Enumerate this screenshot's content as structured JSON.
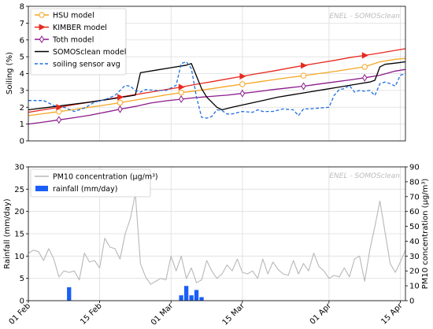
{
  "colors": {
    "hsu": "#f5a623",
    "kimber": "#e8281f",
    "toth": "#8b1a8b",
    "somosclean": "#000000",
    "sensor": "#1f6fe0",
    "pm10": "#b8b8b8",
    "rainfall": "#1a5ff5"
  },
  "chart_data": [
    {
      "type": "line",
      "watermark": "ENEL - SOMOSclean",
      "ylabel": "Soiling (%)",
      "ylim": [
        0,
        8
      ],
      "yticks": [
        "0",
        "1",
        "2",
        "3",
        "4",
        "5",
        "6",
        "7",
        "8"
      ],
      "xlim_days": [
        0,
        74
      ],
      "grid": true,
      "legend_position": "top-left",
      "series": [
        {
          "key": "hsu",
          "name": "HSU model",
          "marker": "circle",
          "x": [
            0,
            3,
            6,
            9,
            12,
            15,
            18,
            21,
            24,
            27,
            30,
            33,
            36,
            39,
            42,
            45,
            48,
            51,
            54,
            57,
            60,
            63,
            66,
            69,
            72,
            74
          ],
          "y": [
            1.5,
            1.62,
            1.74,
            1.87,
            2.0,
            2.13,
            2.27,
            2.43,
            2.58,
            2.73,
            2.87,
            2.98,
            3.1,
            3.24,
            3.37,
            3.5,
            3.63,
            3.76,
            3.88,
            4.0,
            4.12,
            4.26,
            4.4,
            4.7,
            4.85,
            4.9
          ]
        },
        {
          "key": "kimber",
          "name": "KIMBER model",
          "marker": "triangle-right",
          "x": [
            0,
            3,
            6,
            9,
            12,
            15,
            18,
            21,
            24,
            27,
            30,
            33,
            36,
            39,
            42,
            45,
            48,
            51,
            54,
            57,
            60,
            63,
            66,
            69,
            72,
            74
          ],
          "y": [
            1.7,
            1.85,
            2.0,
            2.15,
            2.3,
            2.45,
            2.6,
            2.75,
            2.9,
            3.05,
            3.2,
            3.37,
            3.52,
            3.68,
            3.84,
            4.0,
            4.15,
            4.32,
            4.48,
            4.63,
            4.78,
            4.95,
            5.08,
            5.22,
            5.38,
            5.48
          ]
        },
        {
          "key": "toth",
          "name": "Toth model",
          "marker": "diamond",
          "x": [
            0,
            3,
            6,
            9,
            12,
            15,
            18,
            21,
            24,
            27,
            30,
            33,
            36,
            39,
            42,
            45,
            48,
            51,
            54,
            57,
            60,
            63,
            66,
            69,
            72,
            74
          ],
          "y": [
            1.0,
            1.12,
            1.25,
            1.38,
            1.52,
            1.7,
            1.88,
            2.05,
            2.25,
            2.38,
            2.48,
            2.58,
            2.65,
            2.72,
            2.82,
            2.93,
            3.05,
            3.15,
            3.25,
            3.38,
            3.5,
            3.62,
            3.75,
            3.9,
            4.15,
            4.25
          ]
        },
        {
          "key": "somosclean",
          "name": "SOMOSclean model",
          "marker": "none",
          "x": [
            0,
            4,
            8,
            12,
            16,
            21,
            22,
            25,
            28,
            31,
            32,
            34,
            35,
            37,
            38,
            40,
            43,
            46,
            49,
            52,
            55,
            58,
            61,
            64,
            67,
            68,
            69,
            70,
            72,
            74
          ],
          "y": [
            1.85,
            2.0,
            2.15,
            2.3,
            2.48,
            2.72,
            4.05,
            4.2,
            4.35,
            4.5,
            4.6,
            3.1,
            2.6,
            2.0,
            1.85,
            2.0,
            2.2,
            2.4,
            2.6,
            2.75,
            2.9,
            3.05,
            3.2,
            3.35,
            3.5,
            3.6,
            4.4,
            4.55,
            4.62,
            4.7
          ]
        },
        {
          "key": "sensor",
          "name": "soiling sensor avg",
          "marker": "none",
          "dashed": true,
          "x": [
            0,
            3,
            5,
            7,
            9,
            11,
            13,
            15,
            17,
            19,
            20,
            21,
            22,
            23,
            25,
            27,
            29,
            30,
            31,
            32,
            33,
            34,
            35,
            36,
            37,
            38,
            39,
            40,
            42,
            44,
            45,
            46,
            48,
            50,
            52,
            53,
            54,
            55,
            57,
            59,
            60,
            61,
            62,
            63,
            64,
            65,
            66,
            67,
            68,
            69,
            70,
            71,
            72,
            73,
            74
          ],
          "y": [
            2.4,
            2.4,
            2.1,
            2.0,
            1.75,
            1.95,
            2.3,
            2.45,
            2.7,
            3.3,
            3.25,
            3.0,
            2.9,
            3.05,
            3.0,
            3.0,
            3.3,
            4.6,
            4.7,
            4.3,
            2.6,
            1.4,
            1.35,
            1.45,
            1.85,
            1.8,
            1.6,
            1.6,
            1.75,
            1.7,
            1.85,
            1.75,
            1.75,
            1.9,
            1.85,
            1.5,
            1.9,
            1.9,
            1.95,
            2.0,
            2.7,
            3.05,
            3.1,
            3.3,
            2.9,
            3.0,
            2.95,
            3.0,
            2.7,
            3.4,
            3.5,
            3.4,
            3.25,
            3.9,
            4.0
          ]
        }
      ]
    },
    {
      "type": "line+bar",
      "watermark": "ENEL - SOMOSclean",
      "ylabel": "Rainfall (mm/day)",
      "ylabel_right": "PM10 concentration (μg/m³)",
      "ylim": [
        0,
        30
      ],
      "ylim_right": [
        0,
        90
      ],
      "yticks": [
        "0",
        "5",
        "10",
        "15",
        "20",
        "25",
        "30"
      ],
      "yticks_right": [
        "0",
        "10",
        "20",
        "30",
        "40",
        "50",
        "60",
        "70",
        "80",
        "90"
      ],
      "x_tick_labels": [
        "01 Feb",
        "15 Feb",
        "01 Mar",
        "15 Mar",
        "01 Apr",
        "15 Apr"
      ],
      "x_tick_days": [
        0,
        14,
        28,
        42,
        59,
        73
      ],
      "grid": true,
      "legend_position": "top-left",
      "legend": [
        "PM10 concentration (μg/m³)",
        "rainfall (mm/day)"
      ],
      "pm10": {
        "name": "PM10 concentration (μg/m³)",
        "x": [
          0,
          1,
          2,
          3,
          4,
          5,
          6,
          7,
          8,
          9,
          10,
          11,
          12,
          13,
          14,
          15,
          16,
          17,
          18,
          19,
          20,
          21,
          22,
          23,
          24,
          25,
          26,
          27,
          28,
          29,
          30,
          31,
          32,
          33,
          34,
          35,
          36,
          37,
          38,
          39,
          40,
          41,
          42,
          43,
          44,
          45,
          46,
          47,
          48,
          49,
          50,
          51,
          52,
          53,
          54,
          55,
          56,
          57,
          58,
          59,
          60,
          61,
          62,
          63,
          64,
          65,
          66,
          67,
          68,
          69,
          70,
          71,
          72,
          73,
          74
        ],
        "y": [
          32,
          34,
          33,
          27,
          35,
          28,
          16,
          20,
          19,
          20,
          14,
          32,
          26,
          27,
          22,
          42,
          36,
          35,
          28,
          45,
          55,
          72,
          25,
          16,
          11,
          13,
          15,
          14,
          30,
          20,
          30,
          15,
          22,
          12,
          14,
          27,
          20,
          15,
          18,
          24,
          20,
          28,
          19,
          18,
          20,
          15,
          28,
          18,
          26,
          21,
          18,
          17,
          27,
          18,
          25,
          20,
          32,
          23,
          20,
          15,
          17,
          16,
          22,
          16,
          28,
          30,
          13,
          34,
          50,
          67,
          46,
          25,
          19,
          26,
          34
        ]
      },
      "rainfall": {
        "name": "rainfall (mm/day)",
        "x": [
          8,
          30,
          31,
          32,
          33,
          34
        ],
        "y": [
          3,
          1.2,
          3.3,
          1.2,
          2.4,
          0.8
        ]
      }
    }
  ]
}
